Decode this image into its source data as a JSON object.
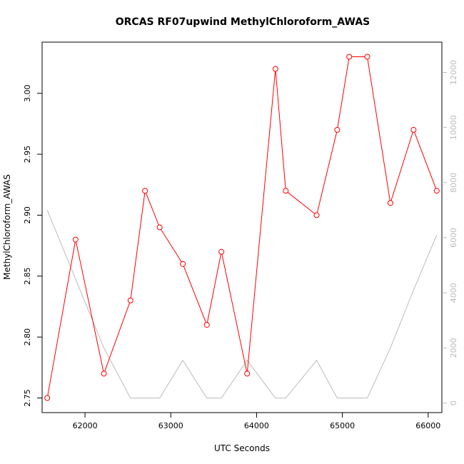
{
  "chart_data": {
    "type": "line",
    "title": "ORCAS RF07upwind MethylChloroform_AWAS",
    "xlabel": "UTC Seconds",
    "ylabel": "MethylChloroform_AWAS",
    "x_ticks": [
      62000,
      63000,
      64000,
      65000,
      66000
    ],
    "y_ticks": [
      2.75,
      2.8,
      2.85,
      2.9,
      2.95,
      3.0
    ],
    "y_tick_labels": [
      "2.75",
      "2.80",
      "2.85",
      "2.90",
      "2.95",
      "3.00"
    ],
    "y2_ticks": [
      0,
      2000,
      4000,
      6000,
      8000,
      10000,
      12000
    ],
    "xlim": [
      61500,
      66160
    ],
    "ylim": [
      2.738,
      3.042
    ],
    "y2lim": [
      -347,
      13100
    ],
    "grid": false,
    "series": [
      {
        "color": "#ff0000",
        "axis": "left",
        "marker": "open-circle",
        "x": [
          61560,
          61890,
          62220,
          62530,
          62700,
          62870,
          63140,
          63420,
          63590,
          63890,
          64220,
          64340,
          64700,
          64940,
          65080,
          65290,
          65560,
          65830,
          66100
        ],
        "y": [
          2.75,
          2.88,
          2.77,
          2.83,
          2.92,
          2.89,
          2.86,
          2.81,
          2.87,
          2.77,
          3.02,
          2.92,
          2.9,
          2.97,
          3.03,
          3.03,
          2.91,
          2.97,
          2.92
        ]
      },
      {
        "color": "#bbbbbb",
        "axis": "right",
        "marker": "none",
        "x": [
          61560,
          61890,
          62220,
          62530,
          62700,
          62870,
          63140,
          63420,
          63590,
          63890,
          64220,
          64340,
          64700,
          64940,
          65080,
          65290,
          65560,
          65830,
          66100
        ],
        "y": [
          7000,
          4500,
          2000,
          180,
          180,
          180,
          1550,
          180,
          180,
          1550,
          180,
          180,
          1550,
          180,
          180,
          180,
          2000,
          4100,
          6100
        ]
      }
    ]
  }
}
